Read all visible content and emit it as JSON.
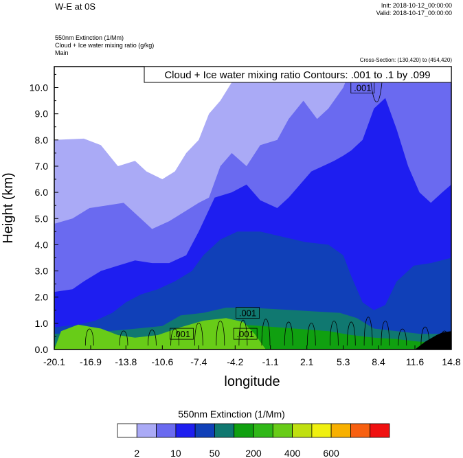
{
  "header": {
    "title": "W-E at 0S",
    "init": "Init: 2018-10-12_00:00:00",
    "valid": "Valid: 2018-10-17_00:00:00",
    "field1": "550nm Extinction   (1/Mm)",
    "field2": "Cloud + Ice water mixing ratio   (g/kg)",
    "field3": "Main",
    "cross_section": "Cross-Section: (130,420) to (454,420)"
  },
  "chart_data": {
    "type": "contour",
    "xlabel": "longitude",
    "ylabel": "Height (km)",
    "xlim": [
      -20.1,
      14.8
    ],
    "ylim": [
      0.0,
      10.8
    ],
    "x_ticks": [
      "-20.1",
      "-16.9",
      "-13.8",
      "-10.6",
      "-7.4",
      "-4.2",
      "-1.1",
      "2.1",
      "5.3",
      "8.4",
      "11.6",
      "14.8"
    ],
    "y_ticks": [
      "0.0",
      "1.0",
      "2.0",
      "3.0",
      "4.0",
      "5.0",
      "6.0",
      "7.0",
      "8.0",
      "9.0",
      "10.0"
    ],
    "contour_legend": "Cloud + Ice water mixing ratio Contours: .001 to .1 by .099",
    "contour_labels": [
      {
        "text": ".001",
        "lon": -8.9,
        "height": 0.6
      },
      {
        "text": ".001",
        "lon": -3.3,
        "height": 0.6
      },
      {
        "text": ".001",
        "lon": -3.1,
        "height": 1.4
      },
      {
        "text": ".001",
        "lon": 7.0,
        "height": 10.0
      }
    ],
    "colorbar": {
      "title": "550nm Extinction  (1/Mm)",
      "labels": [
        "2",
        "10",
        "50",
        "200",
        "400",
        "600"
      ],
      "colors": [
        "#ffffff",
        "#aaaaf6",
        "#6a6af0",
        "#1e1ef0",
        "#1040b8",
        "#107870",
        "#10a010",
        "#30b818",
        "#68cc18",
        "#c0e010",
        "#f0f010",
        "#f8b000",
        "#f86010",
        "#f01010"
      ]
    },
    "layers": [
      {
        "color": "#aaaaf6",
        "tops": [
          [
            -20.1,
            8.0
          ],
          [
            -17.5,
            8.05
          ],
          [
            -16.0,
            7.8
          ],
          [
            -14.5,
            7.0
          ],
          [
            -13.0,
            7.2
          ],
          [
            -12.0,
            6.8
          ],
          [
            -10.6,
            6.5
          ],
          [
            -9.5,
            6.8
          ],
          [
            -8.5,
            7.5
          ],
          [
            -7.4,
            8.0
          ],
          [
            -6.5,
            9.0
          ],
          [
            -5.5,
            9.5
          ],
          [
            -4.5,
            10.2
          ],
          [
            -3.5,
            10.5
          ],
          [
            -2.0,
            10.8
          ],
          [
            14.8,
            10.8
          ]
        ]
      },
      {
        "color": "#6a6af0",
        "tops": [
          [
            -20.1,
            4.8
          ],
          [
            -18.5,
            5.0
          ],
          [
            -17.0,
            5.4
          ],
          [
            -15.5,
            5.5
          ],
          [
            -14.0,
            5.6
          ],
          [
            -12.5,
            5.0
          ],
          [
            -11.5,
            4.6
          ],
          [
            -10.0,
            4.9
          ],
          [
            -8.5,
            5.3
          ],
          [
            -7.4,
            5.6
          ],
          [
            -6.5,
            5.8
          ],
          [
            -5.5,
            7.0
          ],
          [
            -4.5,
            7.5
          ],
          [
            -3.2,
            7.0
          ],
          [
            -2.0,
            7.8
          ],
          [
            -0.5,
            8.0
          ],
          [
            0.5,
            8.8
          ],
          [
            1.8,
            9.5
          ],
          [
            3.0,
            8.8
          ],
          [
            4.0,
            9.2
          ],
          [
            5.3,
            10.0
          ],
          [
            6.0,
            10.8
          ],
          [
            14.8,
            10.8
          ]
        ]
      },
      {
        "color": "#1e1ef0",
        "tops": [
          [
            -20.1,
            2.2
          ],
          [
            -18.5,
            2.3
          ],
          [
            -17.5,
            2.6
          ],
          [
            -16.0,
            3.0
          ],
          [
            -14.5,
            3.2
          ],
          [
            -13.0,
            3.4
          ],
          [
            -11.5,
            3.3
          ],
          [
            -10.0,
            3.3
          ],
          [
            -8.5,
            3.6
          ],
          [
            -7.4,
            4.5
          ],
          [
            -6.0,
            5.8
          ],
          [
            -4.5,
            6.0
          ],
          [
            -3.2,
            6.3
          ],
          [
            -2.0,
            5.7
          ],
          [
            -0.5,
            5.4
          ],
          [
            0.5,
            5.8
          ],
          [
            1.5,
            6.3
          ],
          [
            2.5,
            6.8
          ],
          [
            3.5,
            7.0
          ],
          [
            4.5,
            7.2
          ],
          [
            5.3,
            7.4
          ],
          [
            6.0,
            7.6
          ],
          [
            7.0,
            8.0
          ],
          [
            8.0,
            9.2
          ],
          [
            9.0,
            9.6
          ],
          [
            10.0,
            8.4
          ],
          [
            11.0,
            7.0
          ],
          [
            12.0,
            6.0
          ],
          [
            13.0,
            5.6
          ],
          [
            14.0,
            6.0
          ],
          [
            14.8,
            6.3
          ]
        ]
      },
      {
        "color": "#1040b8",
        "tops": [
          [
            -20.1,
            0.85
          ],
          [
            -18.0,
            0.95
          ],
          [
            -16.5,
            1.1
          ],
          [
            -15.0,
            1.4
          ],
          [
            -13.8,
            1.8
          ],
          [
            -12.5,
            2.1
          ],
          [
            -11.0,
            2.3
          ],
          [
            -9.5,
            2.6
          ],
          [
            -8.0,
            3.0
          ],
          [
            -7.0,
            3.6
          ],
          [
            -5.5,
            4.2
          ],
          [
            -4.0,
            4.5
          ],
          [
            -2.0,
            4.5
          ],
          [
            0.0,
            4.3
          ],
          [
            2.0,
            4.1
          ],
          [
            4.0,
            4.0
          ],
          [
            5.3,
            3.6
          ],
          [
            6.0,
            2.8
          ],
          [
            7.0,
            1.8
          ],
          [
            8.0,
            1.5
          ],
          [
            9.0,
            1.7
          ],
          [
            10.0,
            2.6
          ],
          [
            11.5,
            3.2
          ],
          [
            13.0,
            3.3
          ],
          [
            14.8,
            3.5
          ]
        ]
      },
      {
        "color": "#107870",
        "tops": [
          [
            -20.1,
            0.6
          ],
          [
            -17.0,
            0.65
          ],
          [
            -14.0,
            0.75
          ],
          [
            -10.6,
            0.9
          ],
          [
            -9.0,
            1.3
          ],
          [
            -7.0,
            1.4
          ],
          [
            -5.0,
            1.6
          ],
          [
            -3.0,
            1.6
          ],
          [
            -1.0,
            1.55
          ],
          [
            1.0,
            1.5
          ],
          [
            3.0,
            1.45
          ],
          [
            5.0,
            1.4
          ],
          [
            6.5,
            1.2
          ],
          [
            8.0,
            0.8
          ],
          [
            10.0,
            0.7
          ],
          [
            12.0,
            0.6
          ],
          [
            14.8,
            0.6
          ]
        ]
      },
      {
        "color": "#10a010",
        "tops": [
          [
            -20.1,
            0.15
          ],
          [
            -18.0,
            0.25
          ],
          [
            -16.0,
            0.3
          ],
          [
            -14.0,
            0.35
          ],
          [
            -11.0,
            0.4
          ],
          [
            -8.0,
            0.8
          ],
          [
            -5.0,
            1.0
          ],
          [
            -2.0,
            0.9
          ],
          [
            1.0,
            0.8
          ],
          [
            4.0,
            0.7
          ],
          [
            6.0,
            0.55
          ],
          [
            8.0,
            0.45
          ],
          [
            10.0,
            0.4
          ],
          [
            12.0,
            0.3
          ],
          [
            14.8,
            0.25
          ]
        ]
      },
      {
        "color": "#68cc18",
        "tops": [
          [
            -20.1,
            0.0
          ],
          [
            -19.5,
            0.7
          ],
          [
            -18.0,
            0.95
          ],
          [
            -16.0,
            0.8
          ],
          [
            -14.5,
            0.55
          ],
          [
            -13.0,
            0.45
          ],
          [
            -11.0,
            0.55
          ],
          [
            -9.0,
            0.85
          ],
          [
            -7.0,
            1.1
          ],
          [
            -5.0,
            1.2
          ],
          [
            -3.5,
            1.05
          ],
          [
            -2.5,
            0.6
          ],
          [
            -1.5,
            0.0
          ],
          [
            14.8,
            0.0
          ]
        ]
      }
    ],
    "terrain": [
      [
        11.6,
        0.0
      ],
      [
        12.5,
        0.3
      ],
      [
        13.5,
        0.55
      ],
      [
        14.0,
        0.65
      ],
      [
        14.8,
        0.7
      ]
    ]
  }
}
